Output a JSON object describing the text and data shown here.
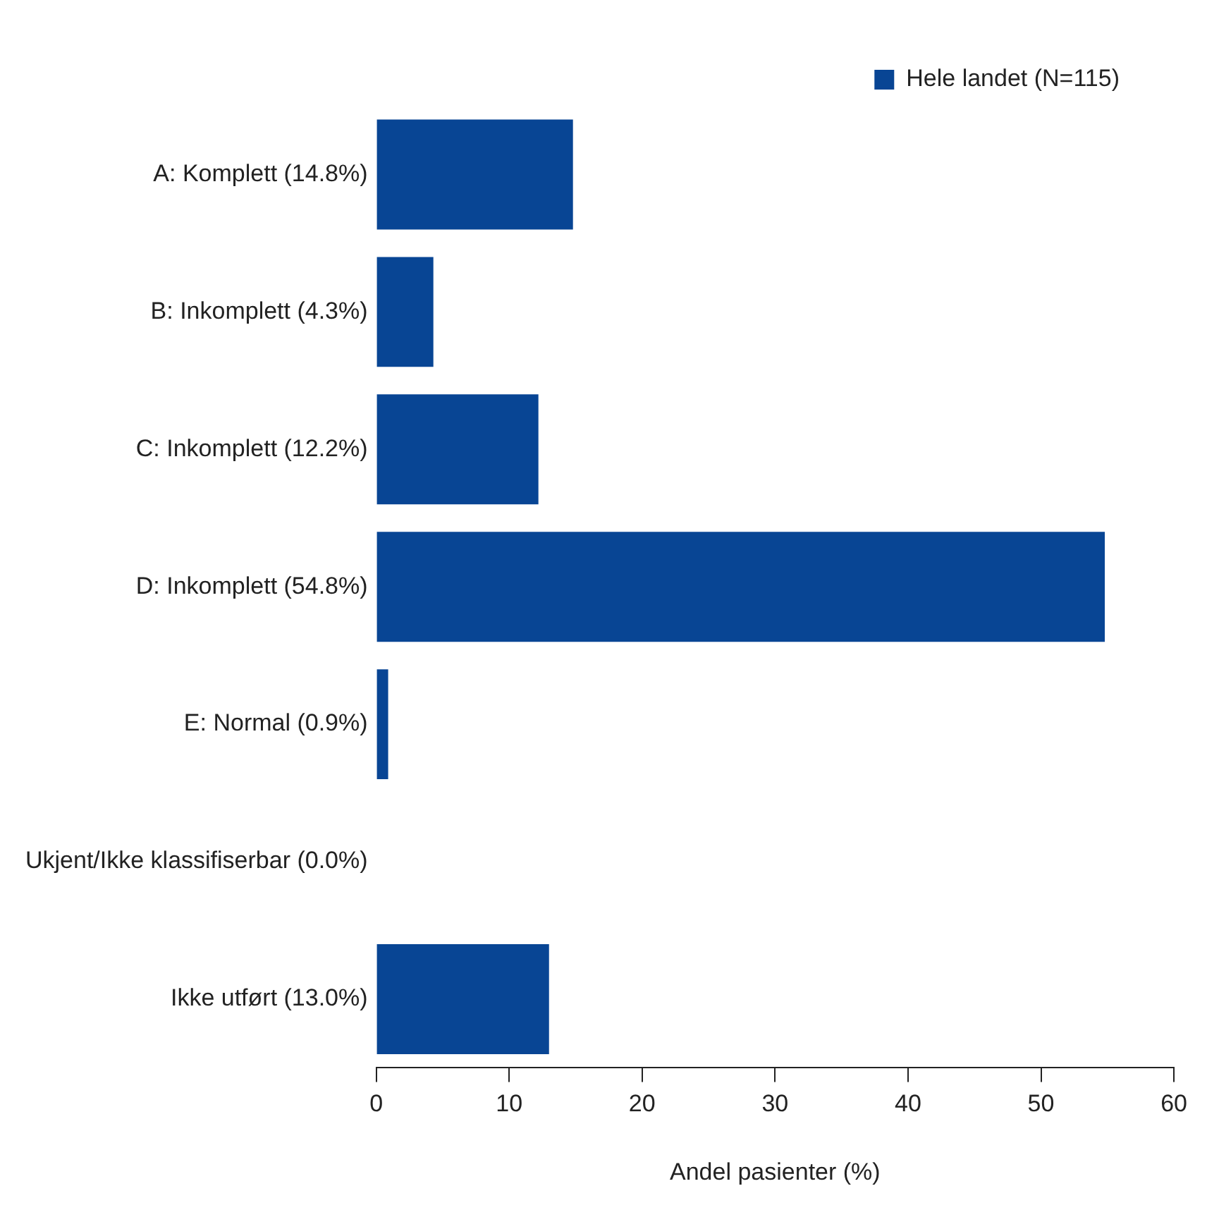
{
  "chart_data": {
    "type": "bar",
    "orientation": "horizontal",
    "categories": [
      "A: Komplett (14.8%)",
      "B: Inkomplett (4.3%)",
      "C: Inkomplett (12.2%)",
      "D: Inkomplett (54.8%)",
      "E: Normal (0.9%)",
      "Ukjent/Ikke klassifiserbar (0.0%)",
      "Ikke utført (13.0%)"
    ],
    "series": [
      {
        "name": "Hele landet (N=115)",
        "color": "#084594",
        "values": [
          14.8,
          4.3,
          12.2,
          54.8,
          0.9,
          0.0,
          13.0
        ]
      }
    ],
    "xlabel": "Andel pasienter (%)",
    "xlim": [
      0,
      60
    ],
    "xticks": [
      0,
      10,
      20,
      30,
      40,
      50,
      60
    ],
    "grid": false,
    "legend": "top right"
  }
}
